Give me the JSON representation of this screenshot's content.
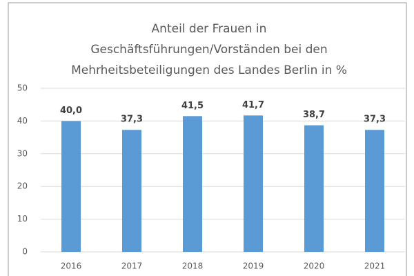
{
  "chart_data": {
    "type": "bar",
    "title": [
      "Anteil der Frauen in",
      "Geschäftsführungen/Vorständen bei den",
      "Mehrheitsbeteiligungen des Landes Berlin in %"
    ],
    "categories": [
      "2016",
      "2017",
      "2018",
      "2019",
      "2020",
      "2021"
    ],
    "values": [
      40.0,
      37.3,
      41.5,
      41.7,
      38.7,
      37.3
    ],
    "value_labels": [
      "40,0",
      "37,3",
      "41,5",
      "41,7",
      "38,7",
      "37,3"
    ],
    "color": "#5b9bd5",
    "ylim": [
      0,
      50
    ],
    "yticks": [
      0,
      10,
      20,
      30,
      40,
      50
    ],
    "grid": true
  }
}
